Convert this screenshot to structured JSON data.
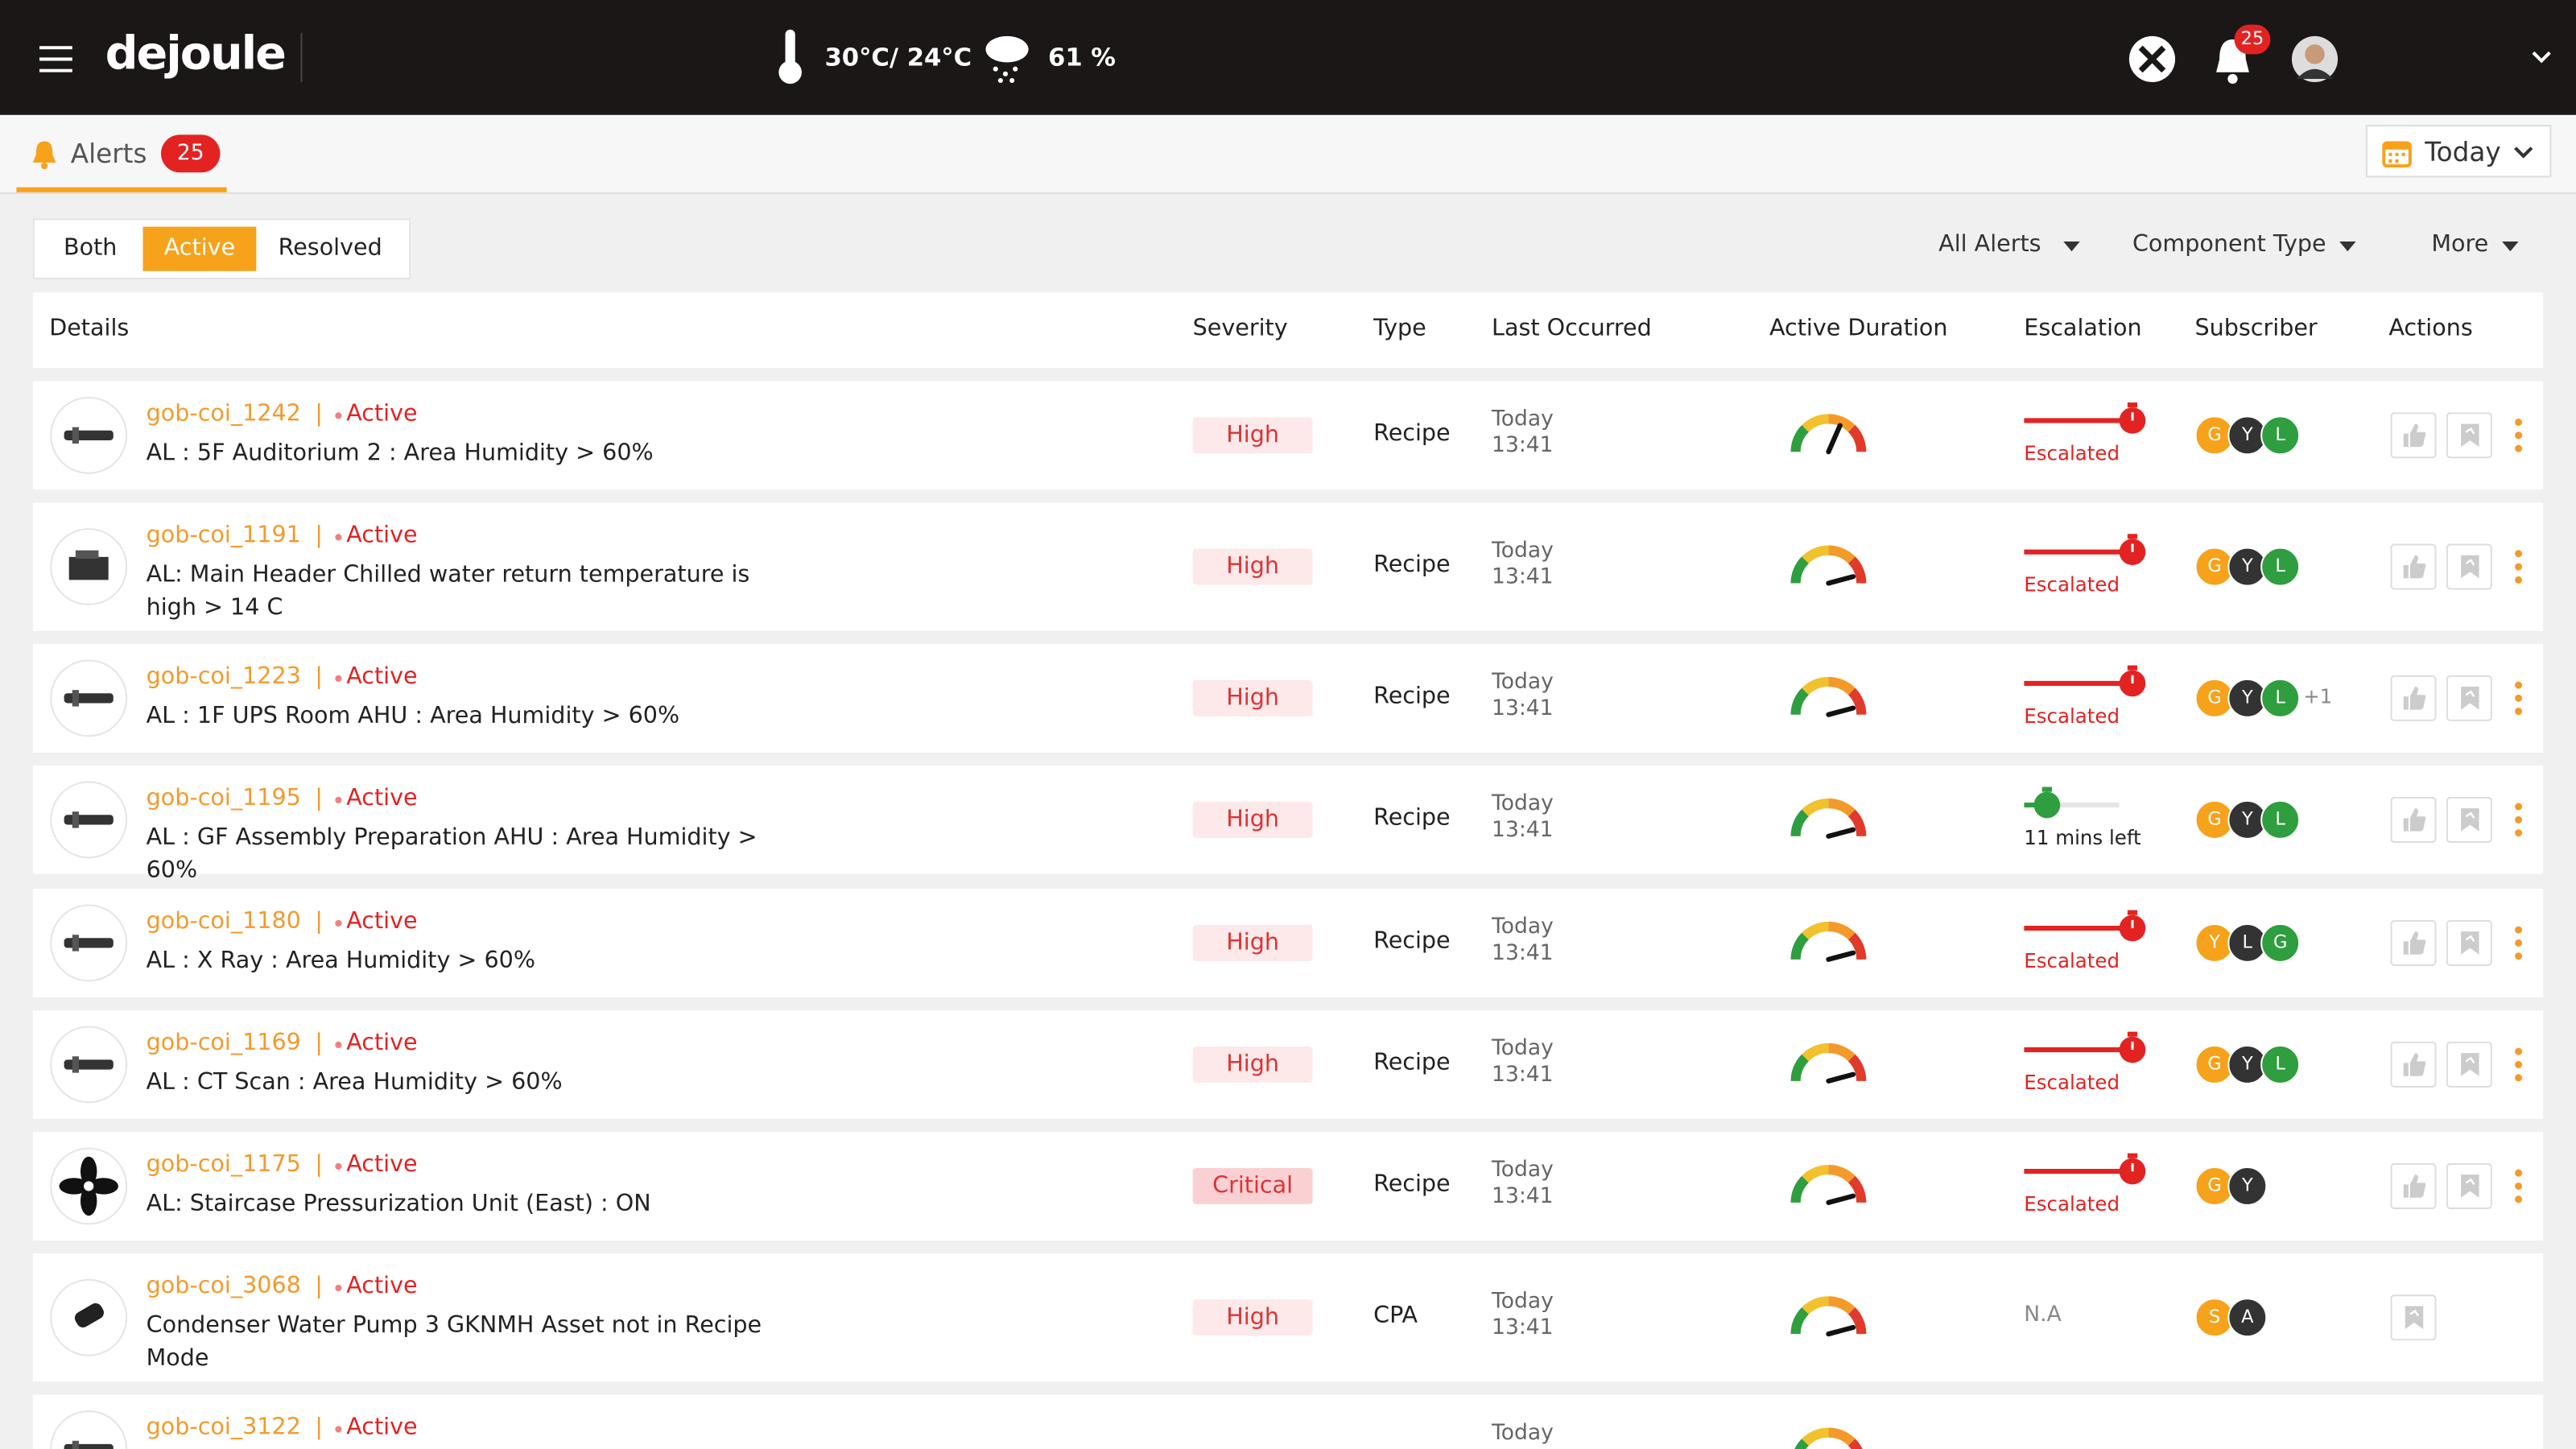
{
  "header": {
    "brand": "dejoule",
    "temperature": "30°C/ 24°C",
    "humidity": "61 %",
    "notification_count": 25
  },
  "tab": {
    "label": "Alerts",
    "count": 25,
    "date_filter": "Today"
  },
  "status_filter": {
    "options": [
      "Both",
      "Active",
      "Resolved"
    ],
    "selected": 1
  },
  "dropdowns": [
    "All Alerts",
    "Component Type",
    "More"
  ],
  "table": {
    "columns": [
      "Details",
      "Severity",
      "Type",
      "Last Occurred",
      "Active Duration",
      "Escalation",
      "Subscriber",
      "Actions"
    ],
    "rows": [
      {
        "id": "gob-coi_1242",
        "status": "Active",
        "description": "AL : 5F Auditorium 2 : Area Humidity > 60%",
        "severity": "High",
        "type": "Recipe",
        "last_occurred": [
          "Today",
          "13:41"
        ],
        "escalation": "Escalated",
        "subscribers": [
          "G",
          "Y",
          "L"
        ]
      },
      {
        "id": "gob-coi_1191",
        "status": "Active",
        "description": "AL: Main Header Chilled water return temperature is high > 14 C",
        "severity": "High",
        "type": "Recipe",
        "last_occurred": [
          "Today",
          "13:41"
        ],
        "escalation": "Escalated",
        "subscribers": [
          "G",
          "Y",
          "L"
        ]
      },
      {
        "id": "gob-coi_1223",
        "status": "Active",
        "description": "AL : 1F UPS Room AHU : Area Humidity > 60%",
        "severity": "High",
        "type": "Recipe",
        "last_occurred": [
          "Today",
          "13:41"
        ],
        "escalation": "Escalated",
        "subscribers": [
          "G",
          "Y",
          "L"
        ],
        "more_subscribers": "+1"
      },
      {
        "id": "gob-coi_1195",
        "status": "Active",
        "description": "AL : GF Assembly Preparation AHU : Area Humidity > 60%",
        "severity": "High",
        "type": "Recipe",
        "last_occurred": [
          "Today",
          "13:41"
        ],
        "escalation": "11 mins left",
        "subscribers": [
          "G",
          "Y",
          "L"
        ]
      },
      {
        "id": "gob-coi_1180",
        "status": "Active",
        "description": "AL : X Ray : Area Humidity > 60%",
        "severity": "High",
        "type": "Recipe",
        "last_occurred": [
          "Today",
          "13:41"
        ],
        "escalation": "Escalated",
        "subscribers": [
          "Y",
          "L",
          "G"
        ]
      },
      {
        "id": "gob-coi_1169",
        "status": "Active",
        "description": "AL : CT Scan : Area Humidity > 60%",
        "severity": "High",
        "type": "Recipe",
        "last_occurred": [
          "Today",
          "13:41"
        ],
        "escalation": "Escalated",
        "subscribers": [
          "G",
          "Y",
          "L"
        ]
      },
      {
        "id": "gob-coi_1175",
        "status": "Active",
        "description": "AL: Staircase Pressurization Unit (East) : ON",
        "severity": "Critical",
        "type": "Recipe",
        "last_occurred": [
          "Today",
          "13:41"
        ],
        "escalation": "Escalated",
        "subscribers": [
          "G",
          "Y"
        ]
      },
      {
        "id": "gob-coi_3068",
        "status": "Active",
        "description": "Condenser Water Pump 3 GKNMH Asset not in Recipe Mode",
        "severity": "High",
        "type": "CPA",
        "last_occurred": [
          "Today",
          "13:41"
        ],
        "escalation": "N.A",
        "subscribers": [
          "S",
          "A"
        ]
      },
      {
        "id": "gob-coi_3122",
        "status": "Active",
        "last_occurred": [
          "Today"
        ]
      }
    ]
  }
}
